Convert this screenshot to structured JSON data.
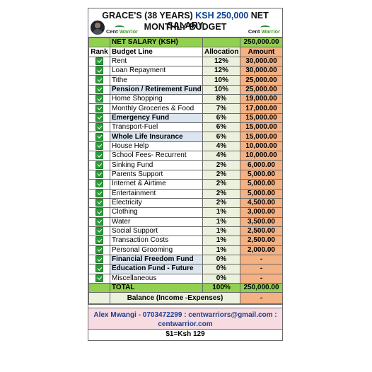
{
  "header": {
    "title_prefix": "GRACE'S (38 YEARS)",
    "title_amount": "KSH 250,000",
    "title_suffix": "NET SALARY",
    "subtitle": "MONTHLY BUDGET",
    "brand_left_a": "Cent",
    "brand_left_b": "Warrior",
    "brand_right_a": "Cent",
    "brand_right_b": "Warrior"
  },
  "net_salary": {
    "label": "NET SALARY (KSH)",
    "amount": "250,000.00"
  },
  "columns": {
    "rank": "Rank",
    "line": "Budget Line",
    "alloc": "Allocation",
    "amount": "Amount"
  },
  "rows": [
    {
      "line": "Rent",
      "alloc": "12%",
      "amount": "30,000.00"
    },
    {
      "line": "Loan Repayment",
      "alloc": "12%",
      "amount": "30,000.00"
    },
    {
      "line": "Tithe",
      "alloc": "10%",
      "amount": "25,000.00"
    },
    {
      "line": "Pension / Retirement Fund",
      "alloc": "10%",
      "amount": "25,000.00"
    },
    {
      "line": "Home Shopping",
      "alloc": "8%",
      "amount": "19,000.00"
    },
    {
      "line": "Monthly Groceries & Food",
      "alloc": "7%",
      "amount": "17,000.00"
    },
    {
      "line": "Emergency Fund",
      "alloc": "6%",
      "amount": "15,000.00"
    },
    {
      "line": "Transport-Fuel",
      "alloc": "6%",
      "amount": "15,000.00"
    },
    {
      "line": "Whole Life Insurance",
      "alloc": "6%",
      "amount": "15,000.00"
    },
    {
      "line": "House Help",
      "alloc": "4%",
      "amount": "10,000.00"
    },
    {
      "line": "School Fees- Recurrent",
      "alloc": "4%",
      "amount": "10,000.00"
    },
    {
      "line": "Sinking Fund",
      "alloc": "2%",
      "amount": "6,000.00"
    },
    {
      "line": "Parents Support",
      "alloc": "2%",
      "amount": "5,000.00"
    },
    {
      "line": "Internet & Airtime",
      "alloc": "2%",
      "amount": "5,000.00"
    },
    {
      "line": "Entertainment",
      "alloc": "2%",
      "amount": "5,000.00"
    },
    {
      "line": "Electricity",
      "alloc": "2%",
      "amount": "4,500.00"
    },
    {
      "line": "Clothing",
      "alloc": "1%",
      "amount": "3,000.00"
    },
    {
      "line": "Water",
      "alloc": "1%",
      "amount": "3,500.00"
    },
    {
      "line": "Social Support",
      "alloc": "1%",
      "amount": "2,500.00"
    },
    {
      "line": "Transaction Costs",
      "alloc": "1%",
      "amount": "2,500.00"
    },
    {
      "line": "Personal Grooming",
      "alloc": "1%",
      "amount": "2,000.00"
    },
    {
      "line": "Financial Freedom Fund",
      "alloc": "0%",
      "amount": "-"
    },
    {
      "line": "Education Fund - Future",
      "alloc": "0%",
      "amount": "-"
    },
    {
      "line": "Miscellaneous",
      "alloc": "0%",
      "amount": "-"
    }
  ],
  "bold_rows": [
    3,
    6,
    8,
    21,
    22
  ],
  "total": {
    "label": "TOTAL",
    "alloc": "100%",
    "amount": "250,000.00"
  },
  "balance": {
    "label": "Balance (Income -Expenses)",
    "amount": "-"
  },
  "contact": "Alex Mwangi - 0703472299 : centwarriors@gmail.com : centwarrior.com",
  "rate": "$1=Ksh 129",
  "colors": {
    "green": "#92d050",
    "allocation_fill": "#ebf1dd",
    "amount_fill": "#f4b183",
    "highlight_line": "#dce6f1",
    "contact_fill": "#f7dbe0",
    "contact_text": "#1f3f8f",
    "title_amount": "#0d3f91"
  },
  "icons": {
    "rank_mark": "green-check-icon"
  }
}
